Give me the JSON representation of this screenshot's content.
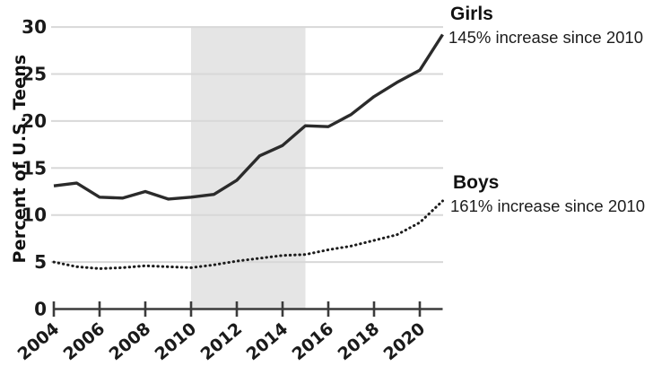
{
  "chart_data": {
    "type": "line",
    "title": "",
    "xlabel": "",
    "ylabel": "Percent of U.S. Teens",
    "x": [
      2004,
      2005,
      2006,
      2007,
      2008,
      2009,
      2010,
      2011,
      2012,
      2013,
      2014,
      2015,
      2016,
      2017,
      2018,
      2019,
      2020,
      2021
    ],
    "x_tick_labels": [
      "2004",
      "2006",
      "2008",
      "2010",
      "2012",
      "2014",
      "2016",
      "2018",
      "2020"
    ],
    "x_tick_years": [
      2004,
      2006,
      2008,
      2010,
      2012,
      2014,
      2016,
      2018,
      2020
    ],
    "y_ticks": [
      0,
      5,
      10,
      15,
      20,
      25,
      30
    ],
    "xlim": [
      2004,
      2021
    ],
    "ylim": [
      0,
      30
    ],
    "grid": "horizontal",
    "legend_position": "annotations-right",
    "shaded_region": {
      "x_start": 2010,
      "x_end": 2015,
      "color": "#e5e5e5"
    },
    "series": [
      {
        "name": "Girls",
        "style": "solid",
        "color": "#2b2b2b",
        "values": [
          13.1,
          13.4,
          11.9,
          11.8,
          12.5,
          11.7,
          11.9,
          12.2,
          13.7,
          16.3,
          17.4,
          19.5,
          19.4,
          20.7,
          22.6,
          24.1,
          25.4,
          29.2
        ]
      },
      {
        "name": "Boys",
        "style": "dotted",
        "color": "#1c1c1c",
        "values": [
          5.0,
          4.5,
          4.3,
          4.4,
          4.6,
          4.5,
          4.4,
          4.7,
          5.1,
          5.4,
          5.7,
          5.8,
          6.3,
          6.7,
          7.3,
          7.9,
          9.2,
          11.5
        ]
      }
    ],
    "colors": {
      "gridline": "#d8d8d8",
      "axis": "#3b3b3b",
      "shading": "#e5e5e5",
      "text": "#1a1a1a"
    }
  },
  "annotations": {
    "girls": {
      "title": "Girls",
      "subtitle": "145% increase since 2010"
    },
    "boys": {
      "title": "Boys",
      "subtitle": "161% increase since 2010"
    }
  }
}
